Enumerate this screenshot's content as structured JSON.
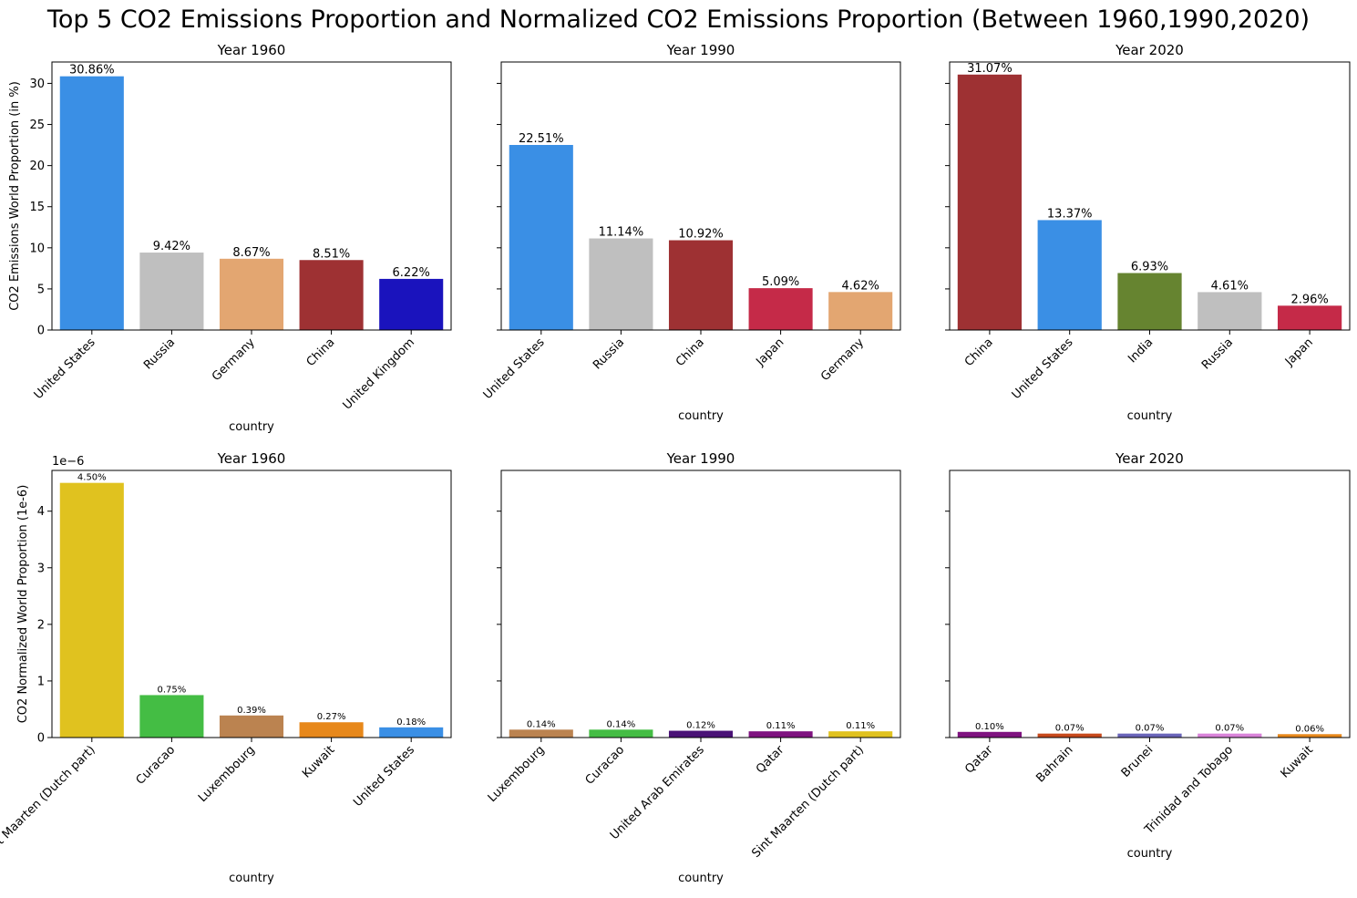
{
  "figure": {
    "title": "Top 5 CO2 Emissions Proportion and Normalized CO2 Emissions Proportion (Between 1960,1990,2020)"
  },
  "chart_data": [
    {
      "type": "bar",
      "title": "Year 1960",
      "xlabel": "country",
      "ylabel": "CO2 Emissions World Proportion (in %)",
      "categories": [
        "United States",
        "Russia",
        "Germany",
        "China",
        "United Kingdom"
      ],
      "values": [
        30.86,
        9.42,
        8.67,
        8.51,
        6.22
      ],
      "labels": [
        "30.86%",
        "9.42%",
        "8.67%",
        "8.51%",
        "6.22%"
      ],
      "colors": [
        "#3a8fe5",
        "#bfbfbf",
        "#e3a671",
        "#9e3133",
        "#1a13bd"
      ],
      "ylim": [
        0,
        32.6
      ],
      "yticks": [
        0,
        5,
        10,
        15,
        20,
        25,
        30
      ],
      "legend": "none",
      "grid": false
    },
    {
      "type": "bar",
      "title": "Year 1990",
      "xlabel": "country",
      "ylabel": "",
      "categories": [
        "United States",
        "Russia",
        "China",
        "Japan",
        "Germany"
      ],
      "values": [
        22.51,
        11.14,
        10.92,
        5.09,
        4.62
      ],
      "labels": [
        "22.51%",
        "11.14%",
        "10.92%",
        "5.09%",
        "4.62%"
      ],
      "colors": [
        "#3a8fe5",
        "#bfbfbf",
        "#9e3133",
        "#c52a48",
        "#e3a671"
      ],
      "ylim": [
        0,
        32.6
      ],
      "yticks": [
        0,
        5,
        10,
        15,
        20,
        25,
        30
      ],
      "legend": "none",
      "grid": false
    },
    {
      "type": "bar",
      "title": "Year 2020",
      "xlabel": "country",
      "ylabel": "",
      "categories": [
        "China",
        "United States",
        "India",
        "Russia",
        "Japan"
      ],
      "values": [
        31.07,
        13.37,
        6.93,
        4.61,
        2.96
      ],
      "labels": [
        "31.07%",
        "13.37%",
        "6.93%",
        "4.61%",
        "2.96%"
      ],
      "colors": [
        "#9e3133",
        "#3a8fe5",
        "#668430",
        "#bfbfbf",
        "#c52a48"
      ],
      "ylim": [
        0,
        32.6
      ],
      "yticks": [
        0,
        5,
        10,
        15,
        20,
        25,
        30
      ],
      "legend": "none",
      "grid": false
    },
    {
      "type": "bar",
      "title": "Year 1960",
      "xlabel": "country",
      "ylabel": "CO2 Normalized World Proportion (1e-6)",
      "offset_text": "1e−6",
      "categories": [
        "Sint Maarten (Dutch part)",
        "Curacao",
        "Luxembourg",
        "Kuwait",
        "United States"
      ],
      "values": [
        4.5,
        0.75,
        0.39,
        0.27,
        0.18
      ],
      "labels": [
        "4.50%",
        "0.75%",
        "0.39%",
        "0.27%",
        "0.18%"
      ],
      "colors": [
        "#e0c21f",
        "#44bd44",
        "#bb8350",
        "#e7881b",
        "#3a8fe5"
      ],
      "ylim": [
        0,
        4.72
      ],
      "yticks": [
        0,
        1,
        2,
        3,
        4
      ],
      "legend": "none",
      "grid": false
    },
    {
      "type": "bar",
      "title": "Year 1990",
      "xlabel": "country",
      "ylabel": "",
      "categories": [
        "Luxembourg",
        "Curacao",
        "United Arab Emirates",
        "Qatar",
        "Sint Maarten (Dutch part)"
      ],
      "values": [
        0.14,
        0.14,
        0.12,
        0.11,
        0.11
      ],
      "labels": [
        "0.14%",
        "0.14%",
        "0.12%",
        "0.11%",
        "0.11%"
      ],
      "colors": [
        "#bb8350",
        "#44bd44",
        "#4a1276",
        "#7f1380",
        "#e0c21f"
      ],
      "ylim": [
        0,
        4.72
      ],
      "yticks": [
        0,
        1,
        2,
        3,
        4
      ],
      "legend": "none",
      "grid": false
    },
    {
      "type": "bar",
      "title": "Year 2020",
      "xlabel": "country",
      "ylabel": "",
      "categories": [
        "Qatar",
        "Bahrain",
        "Brunei",
        "Trinidad and Tobago",
        "Kuwait"
      ],
      "values": [
        0.1,
        0.07,
        0.07,
        0.07,
        0.06
      ],
      "labels": [
        "0.10%",
        "0.07%",
        "0.07%",
        "0.07%",
        "0.06%"
      ],
      "colors": [
        "#7f1380",
        "#c7491c",
        "#6a65b9",
        "#d983d9",
        "#e7881b"
      ],
      "ylim": [
        0,
        4.72
      ],
      "yticks": [
        0,
        1,
        2,
        3,
        4
      ],
      "legend": "none",
      "grid": false
    }
  ]
}
